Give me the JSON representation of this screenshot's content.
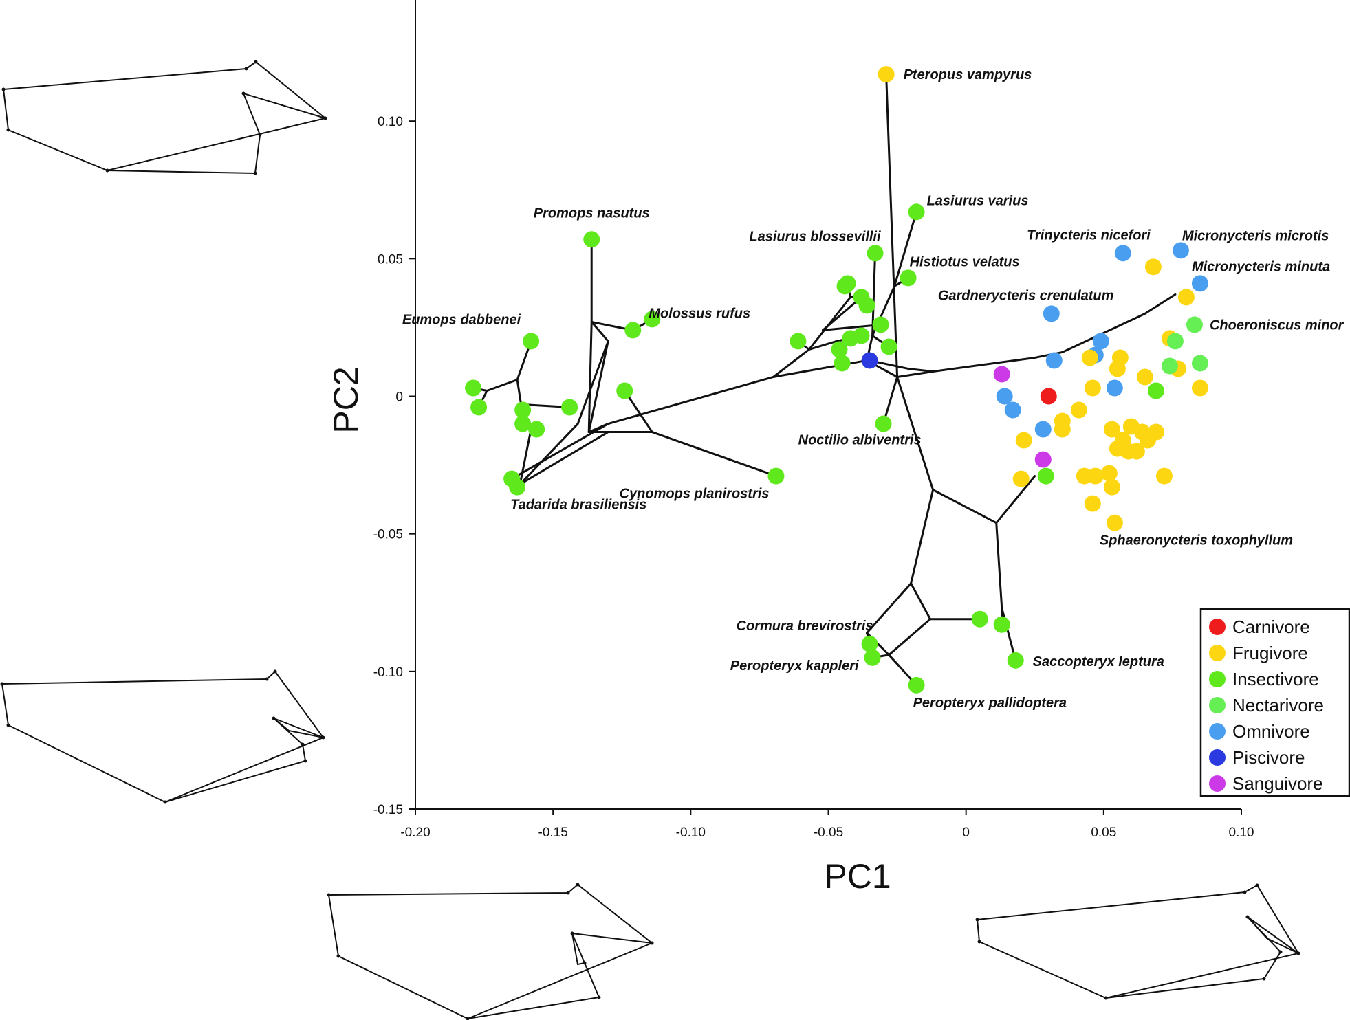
{
  "chart_data": {
    "type": "scatter",
    "xlabel": "PC1",
    "ylabel": "PC2",
    "xlim": [
      -0.2,
      0.1
    ],
    "ylim": [
      -0.15,
      0.15
    ],
    "x_ticks": [
      -0.2,
      -0.15,
      -0.1,
      -0.05,
      0,
      0.05,
      0.1
    ],
    "y_ticks": [
      -0.15,
      -0.1,
      -0.05,
      0,
      0.05,
      0.1
    ],
    "x_tick_labels": [
      "-0.20",
      "-0.15",
      "-0.10",
      "-0.05",
      "0",
      "0.05",
      "0.10"
    ],
    "y_tick_labels": [
      "-0.15",
      "-0.10",
      "-0.05",
      "0",
      "0.05",
      "0.10"
    ],
    "legend_position": "bottom-right",
    "categories": [
      {
        "name": "Carnivore",
        "color": "#ee1c1c"
      },
      {
        "name": "Frugivore",
        "color": "#fcd711"
      },
      {
        "name": "Insectivore",
        "color": "#5fe81c"
      },
      {
        "name": "Nectarivore",
        "color": "#66ee55"
      },
      {
        "name": "Omnivore",
        "color": "#4a9ef0"
      },
      {
        "name": "Piscivore",
        "color": "#2a3ae0"
      },
      {
        "name": "Sanguivore",
        "color": "#cc3ae8"
      }
    ],
    "points": [
      {
        "x": -0.029,
        "y": 0.117,
        "cat": 1,
        "label": "Pteropus vampyrus"
      },
      {
        "x": -0.018,
        "y": 0.067,
        "cat": 2,
        "label": "Lasiurus varius"
      },
      {
        "x": -0.033,
        "y": 0.052,
        "cat": 2,
        "label": "Lasiurus blossevillii"
      },
      {
        "x": -0.021,
        "y": 0.043,
        "cat": 2,
        "label": "Histiotus velatus"
      },
      {
        "x": -0.136,
        "y": 0.057,
        "cat": 2,
        "label": "Promops nasutus"
      },
      {
        "x": -0.114,
        "y": 0.028,
        "cat": 2,
        "label": "Molossus rufus"
      },
      {
        "x": -0.158,
        "y": 0.02,
        "cat": 2,
        "label": "Eumops dabbenei"
      },
      {
        "x": -0.163,
        "y": -0.033,
        "cat": 2,
        "label": "Tadarida brasiliensis"
      },
      {
        "x": -0.069,
        "y": -0.029,
        "cat": 2,
        "label": "Cynomops planirostris"
      },
      {
        "x": -0.03,
        "y": -0.01,
        "cat": 2,
        "label": "Noctilio albiventris"
      },
      {
        "x": -0.035,
        "y": -0.09,
        "cat": 2,
        "label": "Cormura brevirostris"
      },
      {
        "x": -0.034,
        "y": -0.095,
        "cat": 2,
        "label": "Peropteryx kappleri"
      },
      {
        "x": -0.018,
        "y": -0.105,
        "cat": 2,
        "label": "Peropteryx pallidoptera"
      },
      {
        "x": 0.018,
        "y": -0.096,
        "cat": 2,
        "label": "Saccopteryx leptura"
      },
      {
        "x": 0.057,
        "y": 0.052,
        "cat": 4,
        "label": "Trinycteris nicefori"
      },
      {
        "x": 0.078,
        "y": 0.053,
        "cat": 4,
        "label": "Micronycteris microtis"
      },
      {
        "x": 0.085,
        "y": 0.041,
        "cat": 4,
        "label": "Micronycteris minuta"
      },
      {
        "x": 0.031,
        "y": 0.03,
        "cat": 4,
        "label": "Gardnerycteris crenulatum"
      },
      {
        "x": 0.083,
        "y": 0.026,
        "cat": 3,
        "label": "Choeroniscus minor"
      },
      {
        "x": 0.054,
        "y": -0.046,
        "cat": 1,
        "label": "Sphaeronycteris toxophyllum"
      },
      {
        "x": -0.035,
        "y": 0.013,
        "cat": 5
      },
      {
        "x": 0.03,
        "y": 0.0,
        "cat": 0
      },
      {
        "x": 0.013,
        "y": 0.008,
        "cat": 6
      },
      {
        "x": 0.028,
        "y": -0.023,
        "cat": 6
      },
      {
        "x": 0.014,
        "y": 0.0,
        "cat": 4
      },
      {
        "x": 0.017,
        "y": -0.005,
        "cat": 4
      },
      {
        "x": 0.028,
        "y": -0.012,
        "cat": 4
      },
      {
        "x": 0.032,
        "y": 0.013,
        "cat": 4
      },
      {
        "x": 0.049,
        "y": 0.02,
        "cat": 4
      },
      {
        "x": 0.047,
        "y": 0.015,
        "cat": 4
      },
      {
        "x": 0.054,
        "y": 0.003,
        "cat": 4
      },
      {
        "x": 0.068,
        "y": 0.047,
        "cat": 1
      },
      {
        "x": 0.08,
        "y": 0.036,
        "cat": 1
      },
      {
        "x": 0.074,
        "y": 0.021,
        "cat": 1
      },
      {
        "x": 0.077,
        "y": 0.01,
        "cat": 1
      },
      {
        "x": 0.085,
        "y": 0.003,
        "cat": 1
      },
      {
        "x": 0.045,
        "y": 0.014,
        "cat": 1
      },
      {
        "x": 0.056,
        "y": 0.014,
        "cat": 1
      },
      {
        "x": 0.055,
        "y": 0.01,
        "cat": 1
      },
      {
        "x": 0.065,
        "y": 0.007,
        "cat": 1
      },
      {
        "x": 0.046,
        "y": 0.003,
        "cat": 1
      },
      {
        "x": 0.041,
        "y": -0.005,
        "cat": 1
      },
      {
        "x": 0.035,
        "y": -0.009,
        "cat": 1
      },
      {
        "x": 0.035,
        "y": -0.012,
        "cat": 1
      },
      {
        "x": 0.021,
        "y": -0.016,
        "cat": 1
      },
      {
        "x": 0.02,
        "y": -0.03,
        "cat": 1
      },
      {
        "x": 0.053,
        "y": -0.012,
        "cat": 1
      },
      {
        "x": 0.057,
        "y": -0.016,
        "cat": 1
      },
      {
        "x": 0.06,
        "y": -0.011,
        "cat": 1
      },
      {
        "x": 0.064,
        "y": -0.013,
        "cat": 1
      },
      {
        "x": 0.066,
        "y": -0.016,
        "cat": 1
      },
      {
        "x": 0.059,
        "y": -0.02,
        "cat": 1
      },
      {
        "x": 0.062,
        "y": -0.02,
        "cat": 1
      },
      {
        "x": 0.069,
        "y": -0.013,
        "cat": 1
      },
      {
        "x": 0.055,
        "y": -0.019,
        "cat": 1
      },
      {
        "x": 0.052,
        "y": -0.028,
        "cat": 1
      },
      {
        "x": 0.047,
        "y": -0.029,
        "cat": 1
      },
      {
        "x": 0.043,
        "y": -0.029,
        "cat": 1
      },
      {
        "x": 0.053,
        "y": -0.033,
        "cat": 1
      },
      {
        "x": 0.072,
        "y": -0.029,
        "cat": 1
      },
      {
        "x": 0.046,
        "y": -0.039,
        "cat": 1
      },
      {
        "x": 0.029,
        "y": -0.029,
        "cat": 2
      },
      {
        "x": 0.069,
        "y": 0.002,
        "cat": 2
      },
      {
        "x": 0.074,
        "y": 0.011,
        "cat": 3
      },
      {
        "x": 0.085,
        "y": 0.012,
        "cat": 3
      },
      {
        "x": 0.076,
        "y": 0.02,
        "cat": 3
      },
      {
        "x": -0.179,
        "y": 0.003,
        "cat": 2
      },
      {
        "x": -0.177,
        "y": -0.004,
        "cat": 2
      },
      {
        "x": -0.161,
        "y": -0.005,
        "cat": 2
      },
      {
        "x": -0.161,
        "y": -0.01,
        "cat": 2
      },
      {
        "x": -0.156,
        "y": -0.012,
        "cat": 2
      },
      {
        "x": -0.144,
        "y": -0.004,
        "cat": 2
      },
      {
        "x": -0.165,
        "y": -0.03,
        "cat": 2
      },
      {
        "x": -0.124,
        "y": 0.002,
        "cat": 2
      },
      {
        "x": -0.121,
        "y": 0.024,
        "cat": 2
      },
      {
        "x": -0.061,
        "y": 0.02,
        "cat": 2
      },
      {
        "x": -0.043,
        "y": 0.041,
        "cat": 2
      },
      {
        "x": -0.044,
        "y": 0.04,
        "cat": 2
      },
      {
        "x": -0.038,
        "y": 0.036,
        "cat": 2
      },
      {
        "x": -0.036,
        "y": 0.033,
        "cat": 2
      },
      {
        "x": -0.031,
        "y": 0.026,
        "cat": 2
      },
      {
        "x": -0.038,
        "y": 0.022,
        "cat": 2
      },
      {
        "x": -0.042,
        "y": 0.021,
        "cat": 2
      },
      {
        "x": -0.046,
        "y": 0.017,
        "cat": 2
      },
      {
        "x": -0.045,
        "y": 0.012,
        "cat": 2
      },
      {
        "x": -0.028,
        "y": 0.018,
        "cat": 2
      },
      {
        "x": 0.005,
        "y": -0.081,
        "cat": 2
      },
      {
        "x": 0.013,
        "y": -0.083,
        "cat": 2
      }
    ],
    "network_edges": [
      [
        [
          -0.029,
          0.117
        ],
        [
          -0.025,
          0.007
        ]
      ],
      [
        [
          -0.025,
          0.007
        ],
        [
          -0.012,
          -0.034
        ]
      ],
      [
        [
          -0.012,
          -0.034
        ],
        [
          0.011,
          -0.046
        ]
      ],
      [
        [
          -0.012,
          -0.034
        ],
        [
          -0.02,
          -0.068
        ]
      ],
      [
        [
          -0.02,
          -0.068
        ],
        [
          -0.036,
          -0.086
        ]
      ],
      [
        [
          -0.02,
          -0.068
        ],
        [
          -0.013,
          -0.081
        ]
      ],
      [
        [
          -0.013,
          -0.081
        ],
        [
          -0.028,
          -0.094
        ]
      ],
      [
        [
          -0.013,
          -0.081
        ],
        [
          0.005,
          -0.081
        ]
      ],
      [
        [
          -0.036,
          -0.086
        ],
        [
          -0.028,
          -0.094
        ]
      ],
      [
        [
          -0.036,
          -0.086
        ],
        [
          -0.035,
          -0.09
        ]
      ],
      [
        [
          -0.028,
          -0.094
        ],
        [
          -0.034,
          -0.095
        ]
      ],
      [
        [
          -0.028,
          -0.094
        ],
        [
          -0.018,
          -0.105
        ]
      ],
      [
        [
          0.011,
          -0.046
        ],
        [
          0.013,
          -0.077
        ]
      ],
      [
        [
          0.013,
          -0.077
        ],
        [
          0.013,
          -0.083
        ]
      ],
      [
        [
          0.013,
          -0.077
        ],
        [
          0.018,
          -0.096
        ]
      ],
      [
        [
          0.011,
          -0.046
        ],
        [
          0.025,
          -0.029
        ]
      ],
      [
        [
          -0.025,
          0.007
        ],
        [
          -0.012,
          0.009
        ]
      ],
      [
        [
          -0.012,
          0.009
        ],
        [
          0.025,
          0.014
        ]
      ],
      [
        [
          0.025,
          0.014
        ],
        [
          0.035,
          0.016
        ]
      ],
      [
        [
          0.035,
          0.016
        ],
        [
          0.065,
          0.03
        ]
      ],
      [
        [
          0.065,
          0.03
        ],
        [
          0.076,
          0.037
        ]
      ],
      [
        [
          -0.035,
          0.013
        ],
        [
          -0.021,
          0.01
        ]
      ],
      [
        [
          -0.021,
          0.01
        ],
        [
          -0.012,
          0.009
        ]
      ],
      [
        [
          -0.025,
          0.007
        ],
        [
          -0.03,
          -0.01
        ]
      ],
      [
        [
          -0.036,
          0.013
        ],
        [
          -0.025,
          0.007
        ]
      ],
      [
        [
          -0.036,
          0.013
        ],
        [
          -0.07,
          0.007
        ]
      ],
      [
        [
          -0.07,
          0.007
        ],
        [
          -0.13,
          -0.01
        ]
      ],
      [
        [
          -0.13,
          -0.01
        ],
        [
          -0.165,
          -0.03
        ]
      ],
      [
        [
          -0.13,
          -0.013
        ],
        [
          -0.162,
          -0.032
        ]
      ],
      [
        [
          -0.13,
          -0.01
        ],
        [
          -0.137,
          -0.013
        ]
      ],
      [
        [
          -0.137,
          -0.013
        ],
        [
          -0.114,
          -0.013
        ]
      ],
      [
        [
          -0.114,
          -0.013
        ],
        [
          -0.069,
          -0.029
        ]
      ],
      [
        [
          -0.114,
          -0.013
        ],
        [
          -0.124,
          0.002
        ]
      ],
      [
        [
          -0.137,
          -0.013
        ],
        [
          -0.136,
          0.027
        ]
      ],
      [
        [
          -0.136,
          0.027
        ],
        [
          -0.136,
          0.057
        ]
      ],
      [
        [
          -0.136,
          0.027
        ],
        [
          -0.121,
          0.024
        ]
      ],
      [
        [
          -0.121,
          0.024
        ],
        [
          -0.114,
          0.028
        ]
      ],
      [
        [
          -0.136,
          0.027
        ],
        [
          -0.13,
          0.02
        ]
      ],
      [
        [
          -0.13,
          0.02
        ],
        [
          -0.137,
          -0.013
        ]
      ],
      [
        [
          -0.13,
          0.02
        ],
        [
          -0.141,
          -0.01
        ]
      ],
      [
        [
          -0.141,
          -0.01
        ],
        [
          -0.162,
          -0.032
        ]
      ],
      [
        [
          -0.162,
          -0.032
        ],
        [
          -0.163,
          -0.033
        ]
      ],
      [
        [
          -0.162,
          -0.032
        ],
        [
          -0.158,
          -0.012
        ]
      ],
      [
        [
          -0.158,
          -0.012
        ],
        [
          -0.156,
          -0.012
        ]
      ],
      [
        [
          -0.158,
          -0.012
        ],
        [
          -0.161,
          -0.007
        ]
      ],
      [
        [
          -0.161,
          -0.007
        ],
        [
          -0.161,
          -0.01
        ]
      ],
      [
        [
          -0.161,
          -0.007
        ],
        [
          -0.163,
          0.006
        ]
      ],
      [
        [
          -0.163,
          0.006
        ],
        [
          -0.158,
          0.02
        ]
      ],
      [
        [
          -0.163,
          0.006
        ],
        [
          -0.174,
          0.002
        ]
      ],
      [
        [
          -0.174,
          0.002
        ],
        [
          -0.179,
          0.003
        ]
      ],
      [
        [
          -0.174,
          0.002
        ],
        [
          -0.177,
          -0.004
        ]
      ],
      [
        [
          -0.161,
          -0.003
        ],
        [
          -0.144,
          -0.004
        ]
      ],
      [
        [
          -0.07,
          0.007
        ],
        [
          -0.057,
          0.017
        ]
      ],
      [
        [
          -0.057,
          0.017
        ],
        [
          -0.061,
          0.02
        ]
      ],
      [
        [
          -0.057,
          0.017
        ],
        [
          -0.042,
          0.036
        ]
      ],
      [
        [
          -0.042,
          0.036
        ],
        [
          -0.043,
          0.041
        ]
      ],
      [
        [
          -0.042,
          0.036
        ],
        [
          -0.038,
          0.036
        ]
      ],
      [
        [
          -0.052,
          0.024
        ],
        [
          -0.038,
          0.036
        ]
      ],
      [
        [
          -0.038,
          0.036
        ],
        [
          -0.036,
          0.033
        ]
      ],
      [
        [
          -0.052,
          0.024
        ],
        [
          -0.031,
          0.026
        ]
      ],
      [
        [
          -0.047,
          0.02
        ],
        [
          -0.042,
          0.021
        ]
      ],
      [
        [
          -0.047,
          0.02
        ],
        [
          -0.038,
          0.022
        ]
      ],
      [
        [
          -0.047,
          0.02
        ],
        [
          -0.046,
          0.017
        ]
      ],
      [
        [
          -0.047,
          0.02
        ],
        [
          -0.045,
          0.012
        ]
      ],
      [
        [
          -0.057,
          0.017
        ],
        [
          -0.047,
          0.02
        ]
      ],
      [
        [
          -0.034,
          0.022
        ],
        [
          -0.028,
          0.018
        ]
      ],
      [
        [
          -0.034,
          0.022
        ],
        [
          -0.033,
          0.052
        ]
      ],
      [
        [
          -0.034,
          0.022
        ],
        [
          -0.026,
          0.04
        ]
      ],
      [
        [
          -0.026,
          0.04
        ],
        [
          -0.021,
          0.043
        ]
      ],
      [
        [
          -0.026,
          0.04
        ],
        [
          -0.018,
          0.067
        ]
      ],
      [
        [
          -0.036,
          0.013
        ],
        [
          -0.034,
          0.022
        ]
      ]
    ]
  },
  "legend": {
    "items": [
      "Carnivore",
      "Frugivore",
      "Insectivore",
      "Nectarivore",
      "Omnivore",
      "Piscivore",
      "Sanguivore"
    ]
  }
}
